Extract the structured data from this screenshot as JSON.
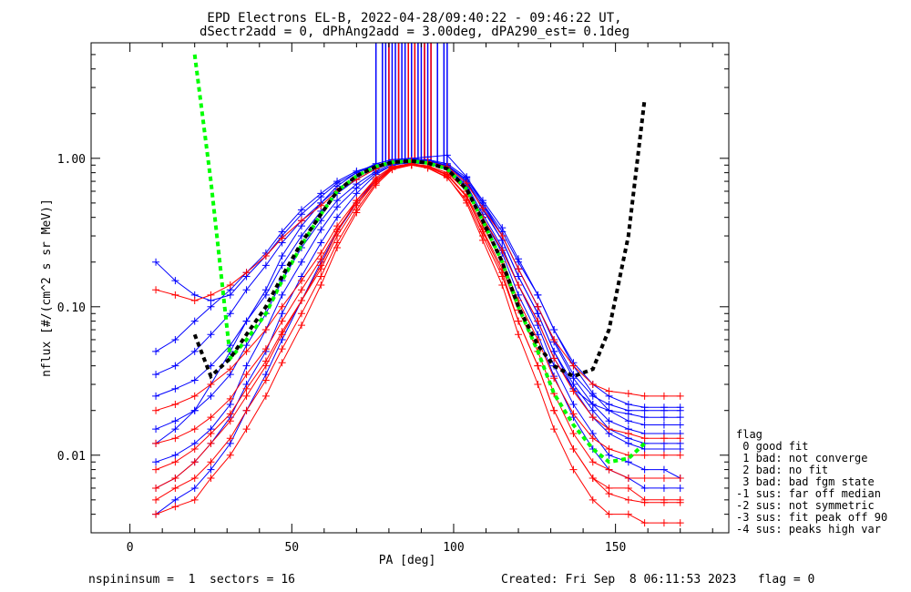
{
  "chart_data": {
    "type": "line",
    "title": "EPD Electrons EL-B, 2022-04-28/09:40:22 - 09:46:22 UT,",
    "subtitle": "dSectr2add = 0, dPhAng2add = 3.00deg, dPA290_est=    0.1deg",
    "xlabel": "PA [deg]",
    "ylabel": "nflux [#/(cm^2 s sr MeV)]",
    "xlim": [
      -12,
      185
    ],
    "ylim": [
      0.003,
      6.0
    ],
    "yscale": "log",
    "xticks": [
      0,
      50,
      100,
      150
    ],
    "yticks": [
      0.01,
      0.1,
      1.0
    ],
    "ytick_labels": [
      "0.01",
      "0.10",
      "1.00"
    ],
    "grid": false,
    "legend_position": "right",
    "colors": {
      "blue": "#0000ff",
      "red": "#ff0000",
      "green": "#00ff00",
      "black": "#000000"
    },
    "x": [
      8,
      14,
      20,
      25,
      31,
      36,
      42,
      47,
      53,
      59,
      64,
      70,
      76,
      81,
      87,
      92,
      98,
      104,
      109,
      115,
      120,
      126,
      131,
      137,
      143,
      148,
      154,
      159,
      165,
      170
    ],
    "series": [
      {
        "color": "#0000ff",
        "style": "thin",
        "values": [
          0.012,
          0.015,
          0.02,
          0.03,
          0.05,
          0.08,
          0.13,
          0.22,
          0.35,
          0.5,
          0.65,
          0.8,
          0.92,
          0.98,
          1.0,
          0.97,
          0.9,
          0.7,
          0.45,
          0.28,
          0.16,
          0.09,
          0.05,
          0.028,
          0.018,
          0.014,
          0.012,
          0.011,
          0.011,
          0.011
        ]
      },
      {
        "color": "#0000ff",
        "style": "thin",
        "values": [
          0.05,
          0.06,
          0.08,
          0.1,
          0.13,
          0.17,
          0.23,
          0.32,
          0.45,
          0.58,
          0.7,
          0.82,
          0.9,
          0.95,
          0.96,
          0.92,
          0.85,
          0.62,
          0.4,
          0.24,
          0.14,
          0.08,
          0.045,
          0.028,
          0.022,
          0.02,
          0.019,
          0.018,
          0.018,
          0.018
        ]
      },
      {
        "color": "#0000ff",
        "style": "thin",
        "values": [
          0.2,
          0.15,
          0.12,
          0.11,
          0.12,
          0.16,
          0.22,
          0.3,
          0.42,
          0.55,
          0.68,
          0.8,
          0.9,
          0.96,
          1.0,
          1.02,
          1.05,
          0.75,
          0.5,
          0.3,
          0.18,
          0.1,
          0.06,
          0.035,
          0.025,
          0.022,
          0.02,
          0.02,
          0.02,
          0.02
        ]
      },
      {
        "color": "#0000ff",
        "style": "thin",
        "values": [
          0.006,
          0.007,
          0.009,
          0.012,
          0.018,
          0.03,
          0.05,
          0.09,
          0.16,
          0.27,
          0.4,
          0.58,
          0.78,
          0.9,
          0.95,
          0.93,
          0.86,
          0.66,
          0.42,
          0.25,
          0.14,
          0.075,
          0.04,
          0.022,
          0.014,
          0.01,
          0.009,
          0.008,
          0.008,
          0.007
        ]
      },
      {
        "color": "#0000ff",
        "style": "thin",
        "values": [
          0.025,
          0.028,
          0.032,
          0.04,
          0.055,
          0.08,
          0.12,
          0.19,
          0.3,
          0.44,
          0.58,
          0.72,
          0.85,
          0.93,
          0.97,
          0.96,
          0.9,
          0.72,
          0.5,
          0.32,
          0.2,
          0.12,
          0.07,
          0.04,
          0.026,
          0.02,
          0.017,
          0.016,
          0.016,
          0.016
        ]
      },
      {
        "color": "#0000ff",
        "style": "thin",
        "values": [
          0.009,
          0.01,
          0.012,
          0.015,
          0.022,
          0.04,
          0.07,
          0.12,
          0.2,
          0.33,
          0.47,
          0.63,
          0.8,
          0.9,
          0.94,
          0.94,
          0.88,
          0.68,
          0.46,
          0.28,
          0.16,
          0.09,
          0.05,
          0.03,
          0.02,
          0.015,
          0.013,
          0.012,
          0.012,
          0.012
        ]
      },
      {
        "color": "#0000ff",
        "style": "thin",
        "values": [
          0.035,
          0.04,
          0.05,
          0.065,
          0.09,
          0.13,
          0.19,
          0.27,
          0.38,
          0.5,
          0.62,
          0.75,
          0.87,
          0.94,
          0.98,
          0.98,
          0.92,
          0.74,
          0.52,
          0.34,
          0.21,
          0.12,
          0.07,
          0.042,
          0.03,
          0.025,
          0.022,
          0.021,
          0.021,
          0.021
        ]
      },
      {
        "color": "#0000ff",
        "style": "thin",
        "values": [
          0.004,
          0.005,
          0.006,
          0.008,
          0.012,
          0.02,
          0.035,
          0.06,
          0.11,
          0.2,
          0.32,
          0.5,
          0.72,
          0.87,
          0.93,
          0.92,
          0.86,
          0.64,
          0.4,
          0.23,
          0.12,
          0.065,
          0.034,
          0.018,
          0.011,
          0.008,
          0.007,
          0.006,
          0.006,
          0.006
        ]
      },
      {
        "color": "#0000ff",
        "style": "thin",
        "values": [
          0.015,
          0.017,
          0.02,
          0.025,
          0.035,
          0.055,
          0.09,
          0.15,
          0.25,
          0.38,
          0.52,
          0.67,
          0.82,
          0.92,
          0.96,
          0.95,
          0.89,
          0.7,
          0.48,
          0.3,
          0.18,
          0.1,
          0.058,
          0.033,
          0.022,
          0.017,
          0.015,
          0.014,
          0.014,
          0.014
        ]
      },
      {
        "color": "#ff0000",
        "style": "thin",
        "values": [
          0.006,
          0.007,
          0.009,
          0.012,
          0.017,
          0.025,
          0.04,
          0.065,
          0.11,
          0.19,
          0.32,
          0.52,
          0.74,
          0.88,
          0.92,
          0.88,
          0.78,
          0.55,
          0.32,
          0.17,
          0.08,
          0.04,
          0.02,
          0.011,
          0.007,
          0.006,
          0.006,
          0.005,
          0.005,
          0.005
        ]
      },
      {
        "color": "#ff0000",
        "style": "thin",
        "values": [
          0.012,
          0.013,
          0.015,
          0.018,
          0.024,
          0.035,
          0.052,
          0.08,
          0.13,
          0.21,
          0.33,
          0.5,
          0.7,
          0.85,
          0.9,
          0.87,
          0.78,
          0.56,
          0.35,
          0.2,
          0.11,
          0.06,
          0.033,
          0.019,
          0.013,
          0.011,
          0.01,
          0.01,
          0.01,
          0.01
        ]
      },
      {
        "color": "#ff0000",
        "style": "thin",
        "values": [
          0.004,
          0.0045,
          0.005,
          0.007,
          0.01,
          0.015,
          0.025,
          0.042,
          0.075,
          0.14,
          0.25,
          0.43,
          0.66,
          0.84,
          0.9,
          0.86,
          0.75,
          0.5,
          0.28,
          0.14,
          0.065,
          0.03,
          0.015,
          0.008,
          0.005,
          0.004,
          0.004,
          0.0035,
          0.0035,
          0.0035
        ]
      },
      {
        "color": "#ff0000",
        "style": "thin",
        "values": [
          0.02,
          0.022,
          0.025,
          0.03,
          0.038,
          0.05,
          0.07,
          0.1,
          0.15,
          0.23,
          0.35,
          0.52,
          0.72,
          0.87,
          0.92,
          0.89,
          0.8,
          0.6,
          0.4,
          0.24,
          0.14,
          0.08,
          0.045,
          0.027,
          0.018,
          0.015,
          0.014,
          0.013,
          0.013,
          0.013
        ]
      },
      {
        "color": "#ff0000",
        "style": "thin",
        "values": [
          0.008,
          0.009,
          0.011,
          0.014,
          0.019,
          0.028,
          0.043,
          0.068,
          0.11,
          0.18,
          0.3,
          0.48,
          0.7,
          0.86,
          0.91,
          0.87,
          0.77,
          0.55,
          0.33,
          0.18,
          0.095,
          0.05,
          0.026,
          0.014,
          0.009,
          0.008,
          0.007,
          0.007,
          0.007,
          0.007
        ]
      },
      {
        "color": "#ff0000",
        "style": "thin",
        "values": [
          0.13,
          0.12,
          0.11,
          0.12,
          0.14,
          0.17,
          0.22,
          0.29,
          0.38,
          0.48,
          0.6,
          0.72,
          0.85,
          0.93,
          0.97,
          0.95,
          0.88,
          0.68,
          0.46,
          0.3,
          0.18,
          0.1,
          0.06,
          0.04,
          0.03,
          0.027,
          0.026,
          0.025,
          0.025,
          0.025
        ]
      },
      {
        "color": "#ff0000",
        "style": "thin",
        "values": [
          0.005,
          0.006,
          0.007,
          0.009,
          0.013,
          0.02,
          0.032,
          0.052,
          0.09,
          0.16,
          0.27,
          0.45,
          0.68,
          0.85,
          0.9,
          0.86,
          0.74,
          0.52,
          0.3,
          0.16,
          0.08,
          0.04,
          0.02,
          0.011,
          0.007,
          0.0055,
          0.005,
          0.0048,
          0.0048,
          0.0048
        ]
      },
      {
        "color": "#00ff00",
        "style": "dashed",
        "values": [
          null,
          null,
          5.0,
          0.7,
          0.045,
          0.06,
          0.09,
          0.15,
          0.26,
          0.42,
          0.6,
          0.76,
          0.88,
          0.94,
          0.96,
          0.93,
          0.85,
          0.62,
          0.38,
          0.2,
          0.1,
          0.05,
          0.026,
          0.016,
          0.011,
          0.009,
          0.0095,
          0.012,
          null,
          null
        ]
      },
      {
        "color": "#000000",
        "style": "dashed",
        "values": [
          null,
          null,
          0.065,
          0.034,
          0.045,
          0.065,
          0.1,
          0.16,
          0.27,
          0.42,
          0.6,
          0.76,
          0.88,
          0.94,
          0.96,
          0.93,
          0.85,
          0.62,
          0.38,
          0.2,
          0.1,
          0.055,
          0.04,
          0.034,
          0.038,
          0.07,
          0.3,
          2.5,
          null,
          null
        ]
      }
    ],
    "vertical_markers": {
      "blue_x": [
        76,
        78,
        79,
        80,
        81,
        82,
        83,
        84,
        85,
        86,
        87,
        88,
        89,
        90,
        91,
        92,
        93,
        95,
        97,
        98
      ],
      "red_x": [
        80,
        83,
        86,
        88,
        91,
        93
      ]
    }
  },
  "legend": {
    "title": "flag",
    "items": [
      " 0 good fit",
      " 1 bad: not converge",
      " 2 bad: no fit",
      " 3 bad: bad fgm state",
      "-1 sus: far off median",
      "-2 sus: not symmetric",
      "-3 sus: fit peak off 90",
      "-4 sus: peaks high var"
    ]
  },
  "footer": {
    "left": "nspininsum =  1  sectors = 16",
    "right": "Created: Fri Sep  8 06:11:53 2023   flag = 0"
  }
}
